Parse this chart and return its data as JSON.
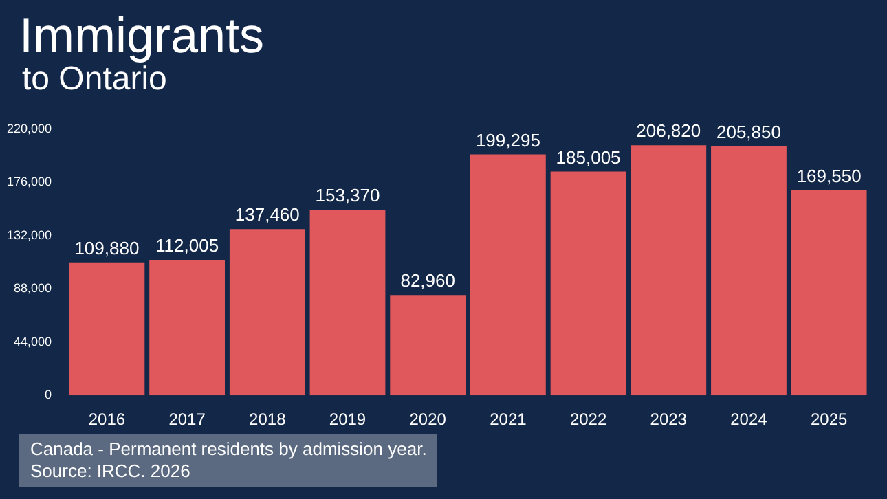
{
  "chart_data": {
    "type": "bar",
    "title": "Immigrants",
    "subtitle": "to Ontario",
    "categories": [
      "2016",
      "2017",
      "2018",
      "2019",
      "2020",
      "2021",
      "2022",
      "2023",
      "2024",
      "2025"
    ],
    "values": [
      109880,
      112005,
      137460,
      153370,
      82960,
      199295,
      185005,
      206820,
      205850,
      169550
    ],
    "value_labels": [
      "109,880",
      "112,005",
      "137,460",
      "153,370",
      "82,960",
      "199,295",
      "185,005",
      "206,820",
      "205,850",
      "169,550"
    ],
    "color": "#e0585c",
    "ylim": [
      0,
      220000
    ],
    "yticks": [
      {
        "value": 0,
        "label": "0"
      },
      {
        "value": 44000,
        "label": "44,000"
      },
      {
        "value": 88000,
        "label": "88,000"
      },
      {
        "value": 132000,
        "label": "132,000"
      },
      {
        "value": 176000,
        "label": "176,000"
      },
      {
        "value": 220000,
        "label": "220,000"
      }
    ],
    "grid": false,
    "legend": false,
    "annotations": [
      "Canada - Permanent residents by admission year.",
      "Source: IRCC. 2026"
    ]
  }
}
